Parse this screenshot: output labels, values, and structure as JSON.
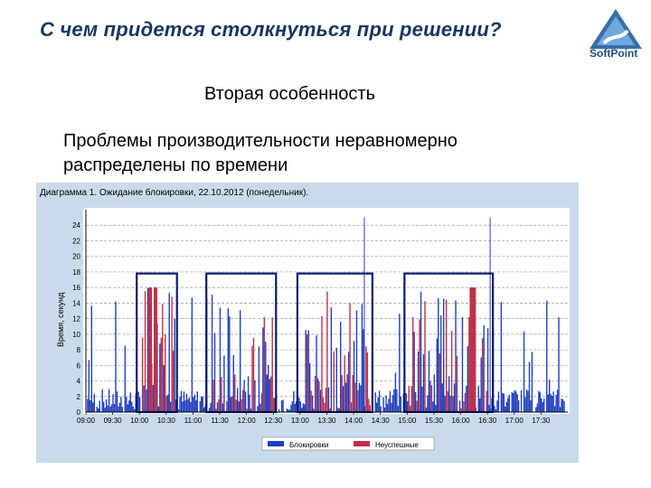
{
  "slide": {
    "title": "С чем придется столкнуться при решении?",
    "subtitle": "Вторая особенность",
    "body_line1": "Проблемы производительности неравномерно",
    "body_line2": "распределены по времени"
  },
  "logo": {
    "text": "SoftPoint",
    "icon": "softpoint-logo-icon"
  },
  "colors": {
    "title": "#17365d",
    "series_blocks": "#1f3fbf",
    "series_failed": "#c0304a",
    "highlight": "#0a1a6e",
    "chart_bg": "#c9dbea"
  },
  "chart_data": {
    "type": "bar",
    "title": "Диаграмма 1. Ожидание блокировки, 22.10.2012 (понедельник).",
    "ylabel": "Время, секунд",
    "xlabel": "",
    "ylim": [
      0,
      26
    ],
    "yticks": [
      0,
      2,
      4,
      6,
      8,
      10,
      12,
      14,
      16,
      18,
      20,
      22,
      24
    ],
    "xlim": [
      9,
      18
    ],
    "xticks": [
      "09:00",
      "09:30",
      "10:00",
      "10:30",
      "11:00",
      "11:30",
      "12:00",
      "12:30",
      "13:00",
      "13:30",
      "14:00",
      "14:30",
      "15:00",
      "15:30",
      "16:00",
      "16:30",
      "17:00",
      "17:30"
    ],
    "grid": true,
    "legend_position": "bottom",
    "series": [
      {
        "name": "Блокировки",
        "color": "#1f3fbf"
      },
      {
        "name": "Неуспешные",
        "color": "#c0304a"
      }
    ],
    "highlighted_ranges": [
      [
        10.0,
        10.65
      ],
      [
        11.3,
        12.5
      ],
      [
        13.0,
        14.3
      ],
      [
        15.0,
        16.55
      ]
    ],
    "tall_lines": [
      {
        "x": 14.2,
        "value": 25
      },
      {
        "x": 16.55,
        "value": 25
      }
    ],
    "failed_peaks": [
      {
        "x": 10.2,
        "value": 16
      },
      {
        "x": 10.3,
        "value": 16
      },
      {
        "x": 16.2,
        "value": 16
      },
      {
        "x": 16.25,
        "value": 16
      }
    ]
  }
}
